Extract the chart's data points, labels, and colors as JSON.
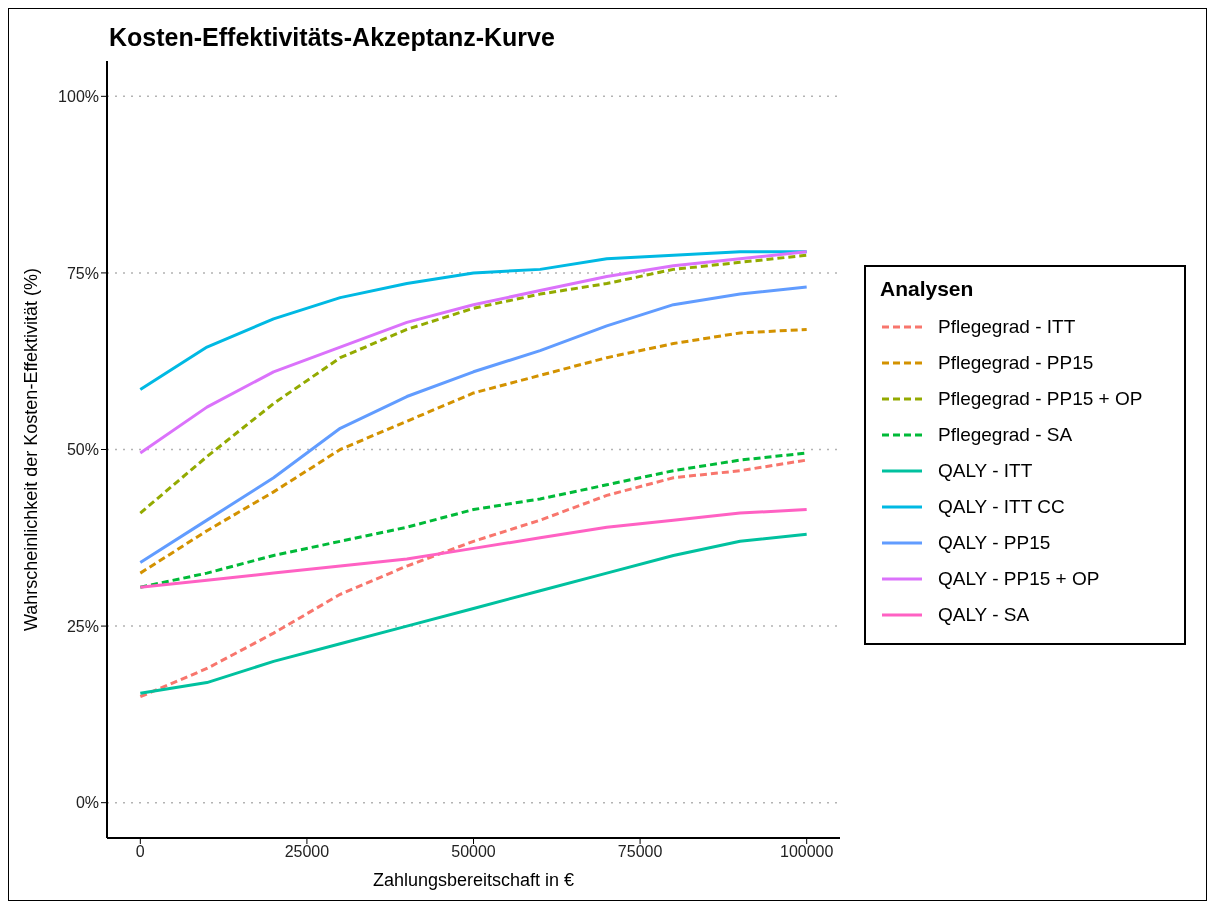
{
  "chart_data": {
    "type": "line",
    "title": "Kosten-Effektivitäts-Akzeptanz-Kurve",
    "xlabel": "Zahlungsbereitschaft in €",
    "ylabel": "Wahrscheinlichkeit der Kosten-Effektivität (%)",
    "legend_title": "Analysen",
    "x": [
      0,
      10000,
      20000,
      30000,
      40000,
      50000,
      60000,
      70000,
      80000,
      90000,
      100000
    ],
    "series": [
      {
        "name": "Pflegegrad - ITT",
        "color": "#f8766d",
        "line_style": "dashed",
        "values": [
          15,
          19,
          24,
          29.5,
          33.5,
          37,
          40,
          43.5,
          46,
          47,
          48.5
        ]
      },
      {
        "name": "Pflegegrad - PP15",
        "color": "#d39200",
        "line_style": "dashed",
        "values": [
          32.5,
          38.5,
          44,
          50,
          54,
          58,
          60.5,
          63,
          65,
          66.5,
          67
        ]
      },
      {
        "name": "Pflegegrad - PP15 + OP",
        "color": "#93aa00",
        "line_style": "dashed",
        "values": [
          41,
          49,
          56.5,
          63,
          67,
          70,
          72,
          73.5,
          75.5,
          76.5,
          77.5
        ]
      },
      {
        "name": "Pflegegrad - SA",
        "color": "#00ba38",
        "line_style": "dashed",
        "values": [
          30.5,
          32.5,
          35,
          37,
          39,
          41.5,
          43,
          45,
          47,
          48.5,
          49.5
        ]
      },
      {
        "name": "QALY - ITT",
        "color": "#00c19f",
        "line_style": "solid",
        "values": [
          15.5,
          17,
          20,
          22.5,
          25,
          27.5,
          30,
          32.5,
          35,
          37,
          38
        ]
      },
      {
        "name": "QALY - ITT CC",
        "color": "#00b9e3",
        "line_style": "solid",
        "values": [
          58.5,
          64.5,
          68.5,
          71.5,
          73.5,
          75,
          75.5,
          77,
          77.5,
          78,
          78
        ]
      },
      {
        "name": "QALY - PP15",
        "color": "#619cff",
        "line_style": "solid",
        "values": [
          34,
          40,
          46,
          53,
          57.5,
          61,
          64,
          67.5,
          70.5,
          72,
          73
        ]
      },
      {
        "name": "QALY - PP15 + OP",
        "color": "#db72fb",
        "line_style": "solid",
        "values": [
          49.5,
          56,
          61,
          64.5,
          68,
          70.5,
          72.5,
          74.5,
          76,
          77,
          78
        ]
      },
      {
        "name": "QALY - SA",
        "color": "#ff61c3",
        "line_style": "solid",
        "values": [
          30.5,
          31.5,
          32.5,
          33.5,
          34.5,
          36,
          37.5,
          39,
          40,
          41,
          41.5
        ]
      }
    ],
    "xlim": [
      -5000,
      105000
    ],
    "xticks": [
      0,
      25000,
      50000,
      75000,
      100000
    ],
    "ylim": [
      -5,
      105
    ],
    "yticks": [
      {
        "value": 0,
        "label": "0%"
      },
      {
        "value": 25,
        "label": "25%"
      },
      {
        "value": 50,
        "label": "50%"
      },
      {
        "value": 75,
        "label": "75%"
      },
      {
        "value": 100,
        "label": "100%"
      }
    ],
    "grid": "y",
    "legend": "right",
    "marker": "none"
  }
}
